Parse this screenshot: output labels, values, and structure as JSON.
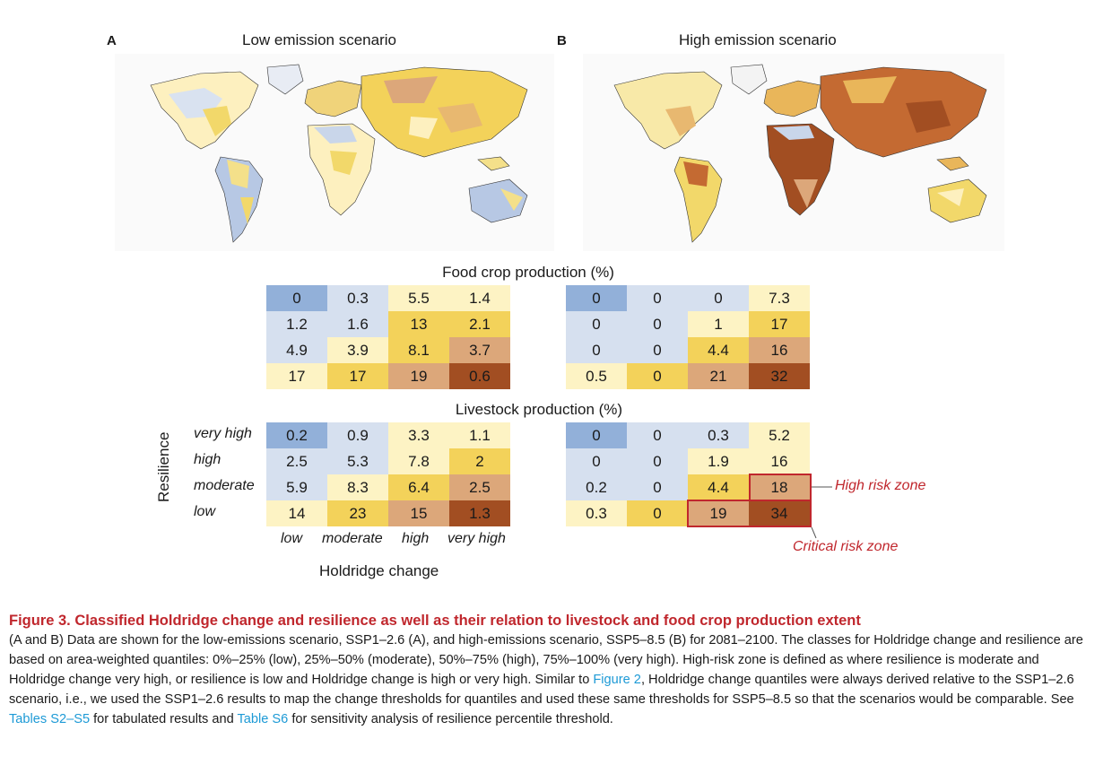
{
  "panels": {
    "a": {
      "letter": "A",
      "title": "Low emission scenario"
    },
    "b": {
      "letter": "B",
      "title": "High emission scenario"
    }
  },
  "colors": {
    "class_1": "#92b0d9",
    "class_2": "#d6e0ef",
    "class_3": "#fdf3c4",
    "class_4": "#f3d25a",
    "class_5": "#dca77a",
    "class_6": "#a24e22",
    "risk_outline": "#c0272d",
    "caption_title": "#c0272d",
    "link": "#1d9ad6"
  },
  "food": {
    "title": "Food crop production (%)",
    "low": {
      "values": [
        [
          "0",
          "0.3",
          "5.5",
          "1.4"
        ],
        [
          "1.2",
          "1.6",
          "13",
          "2.1"
        ],
        [
          "4.9",
          "3.9",
          "8.1",
          "3.7"
        ],
        [
          "17",
          "17",
          "19",
          "0.6"
        ]
      ],
      "classes": [
        [
          1,
          2,
          3,
          3
        ],
        [
          2,
          2,
          4,
          4
        ],
        [
          2,
          3,
          4,
          5
        ],
        [
          3,
          4,
          5,
          6
        ]
      ]
    },
    "high": {
      "values": [
        [
          "0",
          "0",
          "0",
          "7.3"
        ],
        [
          "0",
          "0",
          "1",
          "17"
        ],
        [
          "0",
          "0",
          "4.4",
          "16"
        ],
        [
          "0.5",
          "0",
          "21",
          "32"
        ]
      ],
      "classes": [
        [
          1,
          2,
          2,
          3
        ],
        [
          2,
          2,
          3,
          4
        ],
        [
          2,
          2,
          4,
          5
        ],
        [
          3,
          4,
          5,
          6
        ]
      ]
    }
  },
  "livestock": {
    "title": "Livestock production (%)",
    "low": {
      "values": [
        [
          "0.2",
          "0.9",
          "3.3",
          "1.1"
        ],
        [
          "2.5",
          "5.3",
          "7.8",
          "2"
        ],
        [
          "5.9",
          "8.3",
          "6.4",
          "2.5"
        ],
        [
          "14",
          "23",
          "15",
          "1.3"
        ]
      ],
      "classes": [
        [
          1,
          2,
          3,
          3
        ],
        [
          2,
          2,
          3,
          4
        ],
        [
          2,
          3,
          4,
          5
        ],
        [
          3,
          4,
          5,
          6
        ]
      ]
    },
    "high": {
      "values": [
        [
          "0",
          "0",
          "0.3",
          "5.2"
        ],
        [
          "0",
          "0",
          "1.9",
          "16"
        ],
        [
          "0.2",
          "0",
          "4.4",
          "18"
        ],
        [
          "0.3",
          "0",
          "19",
          "34"
        ]
      ],
      "classes": [
        [
          1,
          2,
          2,
          3
        ],
        [
          2,
          2,
          3,
          3
        ],
        [
          2,
          2,
          4,
          5
        ],
        [
          3,
          4,
          5,
          6
        ]
      ]
    }
  },
  "axes": {
    "resilience_title": "Resilience",
    "resilience_levels": [
      "very high",
      "high",
      "moderate",
      "low"
    ],
    "holdridge_title": "Holdridge change",
    "holdridge_levels": [
      "low",
      "moderate",
      "high",
      "very high"
    ]
  },
  "zones": {
    "high_risk": "High risk zone",
    "critical_risk": "Critical risk zone"
  },
  "caption": {
    "title": "Figure 3. Classified Holdridge change and resilience as well as their relation to livestock and food crop production extent",
    "text_1": "(A and B) Data are shown for the low-emissions scenario, SSP1–2.6 (A), and high-emissions scenario, SSP5–8.5 (B) for 2081–2100. The classes for Holdridge change and resilience are based on area-weighted quantiles: 0%–25% (low), 25%–50% (moderate), 50%–75% (high), 75%–100% (very high). High-risk zone is defined as where resilience is moderate and Holdridge change very high, or resilience is low and Holdridge change is high or very high. Similar to ",
    "link_1": "Figure 2",
    "text_2": ", Holdridge change quantiles were always derived relative to the SSP1–2.6 scenario, i.e., we used the SSP1–2.6 results to map the change thresholds for quantiles and used these same thresholds for SSP5–8.5 so that the scenarios would be comparable. See ",
    "link_2": "Tables S2–S5",
    "text_3": " for tabulated results and ",
    "link_3": "Table S6",
    "text_4": " for sensitivity analysis of resilience percentile threshold."
  }
}
